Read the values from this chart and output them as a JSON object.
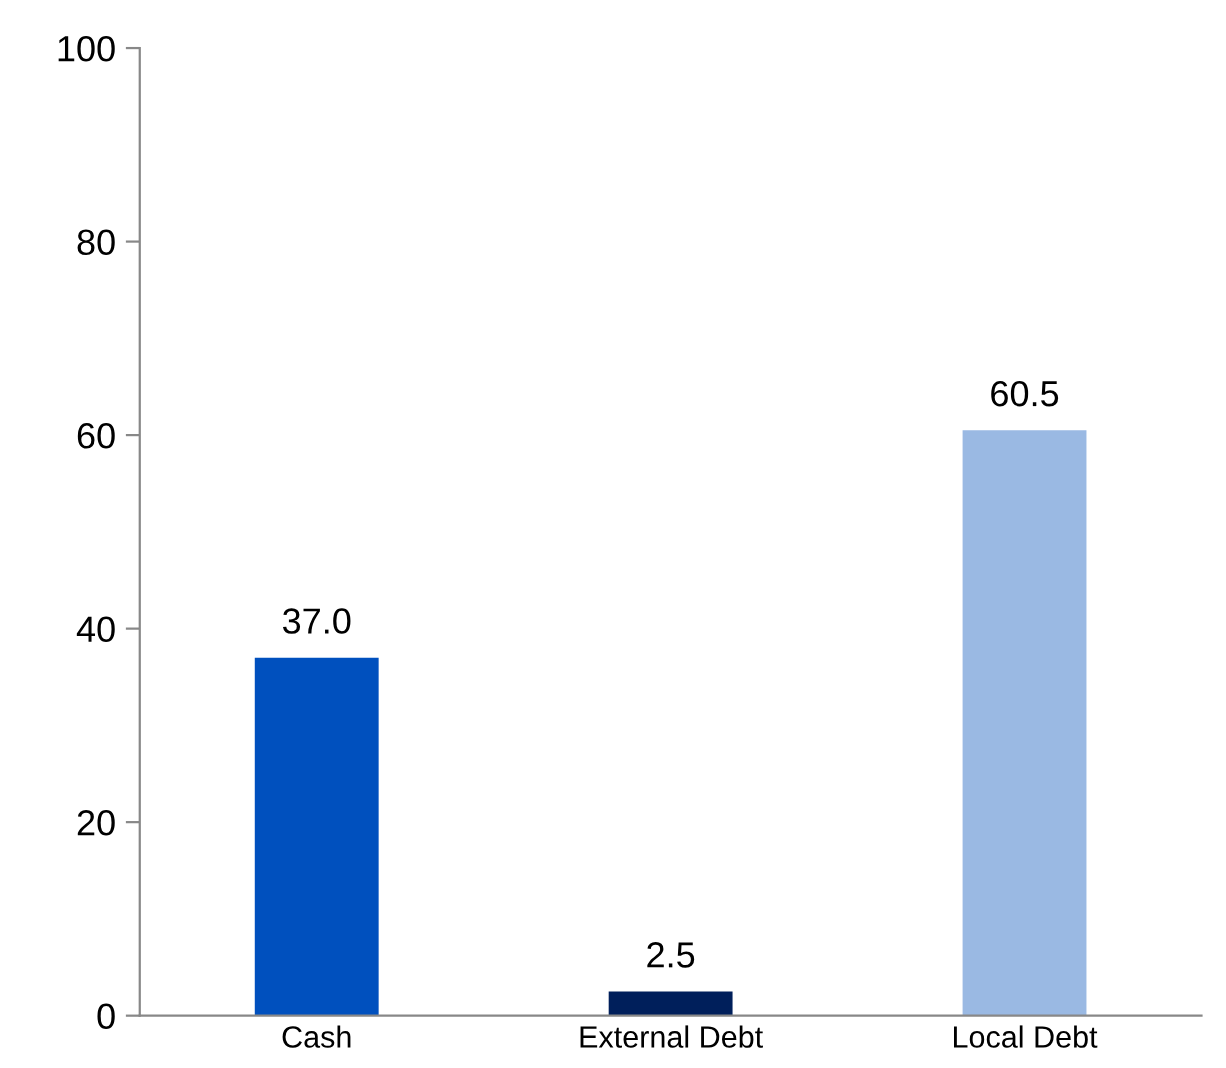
{
  "chart_data": {
    "type": "bar",
    "categories": [
      "Cash",
      "External Debt",
      "Local Debt"
    ],
    "values": [
      37.0,
      2.5,
      60.5
    ],
    "colors": [
      "#0050be",
      "#001f5b",
      "#9ab9e3"
    ],
    "value_labels": [
      "37.0",
      "2.5",
      "60.5"
    ],
    "ylim": [
      0,
      100
    ],
    "yticks": [
      0,
      20,
      40,
      60,
      80,
      100
    ],
    "grid": false,
    "legend": false
  }
}
